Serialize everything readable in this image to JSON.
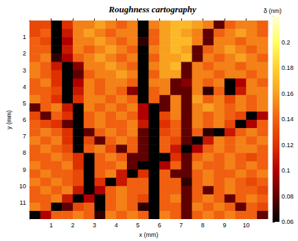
{
  "chart_data": {
    "type": "heatmap",
    "title": "Roughness cartography",
    "x_label": "x (mm)",
    "y_label": "y (mm)",
    "xlim": [
      0,
      11
    ],
    "ylim": [
      0,
      12
    ],
    "xticks": [
      1,
      2,
      3,
      4,
      5,
      6,
      7,
      8,
      9,
      10
    ],
    "yticks": [
      1,
      2,
      3,
      4,
      5,
      6,
      7,
      8,
      9,
      10,
      11
    ],
    "x_edges": [
      0,
      0.5,
      1,
      1.5,
      2,
      2.5,
      3,
      3.5,
      4,
      4.5,
      5,
      5.5,
      6,
      6.5,
      7,
      7.5,
      8,
      8.5,
      9,
      9.5,
      10,
      10.5,
      11
    ],
    "y_edges": [
      0,
      0.5,
      1,
      1.5,
      2,
      2.5,
      3,
      3.5,
      4,
      4.5,
      5,
      5.5,
      6,
      6.5,
      7,
      7.5,
      8,
      8.5,
      9,
      9.5,
      10,
      10.5,
      11,
      11.5,
      12
    ],
    "cells": [
      [
        0.13,
        0.13,
        0.06,
        0.12,
        0.15,
        0.15,
        0.16,
        0.15,
        0.14,
        0.15,
        0.06,
        0.15,
        0.16,
        0.17,
        0.17,
        0.16,
        0.15,
        0.08,
        0.14,
        0.15,
        0.15,
        0.14
      ],
      [
        0.13,
        0.14,
        0.06,
        0.11,
        0.15,
        0.16,
        0.15,
        0.14,
        0.15,
        0.15,
        0.06,
        0.14,
        0.16,
        0.17,
        0.16,
        0.15,
        0.08,
        0.14,
        0.15,
        0.16,
        0.15,
        0.14
      ],
      [
        0.14,
        0.13,
        0.06,
        0.1,
        0.15,
        0.15,
        0.16,
        0.15,
        0.14,
        0.15,
        0.07,
        0.14,
        0.16,
        0.17,
        0.17,
        0.15,
        0.08,
        0.15,
        0.15,
        0.14,
        0.15,
        0.15
      ],
      [
        0.14,
        0.14,
        0.06,
        0.11,
        0.15,
        0.14,
        0.15,
        0.16,
        0.15,
        0.14,
        0.06,
        0.15,
        0.16,
        0.17,
        0.16,
        0.08,
        0.14,
        0.15,
        0.16,
        0.15,
        0.14,
        0.15
      ],
      [
        0.14,
        0.15,
        0.07,
        0.1,
        0.14,
        0.15,
        0.16,
        0.15,
        0.14,
        0.15,
        0.06,
        0.14,
        0.16,
        0.16,
        0.17,
        0.08,
        0.15,
        0.14,
        0.15,
        0.16,
        0.15,
        0.14
      ],
      [
        0.15,
        0.14,
        0.11,
        0.06,
        0.09,
        0.15,
        0.15,
        0.16,
        0.15,
        0.14,
        0.06,
        0.15,
        0.16,
        0.17,
        0.08,
        0.15,
        0.14,
        0.15,
        0.15,
        0.14,
        0.15,
        0.15
      ],
      [
        0.15,
        0.14,
        0.12,
        0.06,
        0.08,
        0.14,
        0.15,
        0.15,
        0.16,
        0.15,
        0.06,
        0.14,
        0.16,
        0.16,
        0.08,
        0.15,
        0.15,
        0.14,
        0.15,
        0.15,
        0.14,
        0.15
      ],
      [
        0.14,
        0.15,
        0.12,
        0.06,
        0.1,
        0.15,
        0.14,
        0.15,
        0.15,
        0.14,
        0.06,
        0.15,
        0.15,
        0.08,
        0.09,
        0.15,
        0.14,
        0.15,
        0.06,
        0.1,
        0.15,
        0.14
      ],
      [
        0.14,
        0.14,
        0.13,
        0.06,
        0.11,
        0.15,
        0.14,
        0.15,
        0.14,
        0.09,
        0.06,
        0.14,
        0.15,
        0.08,
        0.08,
        0.15,
        0.07,
        0.14,
        0.06,
        0.11,
        0.15,
        0.15
      ],
      [
        0.15,
        0.14,
        0.12,
        0.06,
        0.12,
        0.15,
        0.15,
        0.14,
        0.15,
        0.14,
        0.06,
        0.14,
        0.08,
        0.15,
        0.08,
        0.16,
        0.14,
        0.15,
        0.13,
        0.15,
        0.14,
        0.15
      ],
      [
        0.08,
        0.14,
        0.15,
        0.11,
        0.06,
        0.15,
        0.14,
        0.15,
        0.14,
        0.15,
        0.1,
        0.06,
        0.08,
        0.15,
        0.08,
        0.15,
        0.16,
        0.15,
        0.14,
        0.15,
        0.14,
        0.15
      ],
      [
        0.13,
        0.08,
        0.14,
        0.12,
        0.06,
        0.14,
        0.15,
        0.14,
        0.15,
        0.14,
        0.1,
        0.06,
        0.13,
        0.15,
        0.08,
        0.15,
        0.14,
        0.15,
        0.14,
        0.13,
        0.06,
        0.1
      ],
      [
        0.14,
        0.13,
        0.12,
        0.08,
        0.06,
        0.14,
        0.15,
        0.14,
        0.14,
        0.15,
        0.11,
        0.06,
        0.12,
        0.14,
        0.08,
        0.15,
        0.14,
        0.15,
        0.13,
        0.06,
        0.1,
        0.14
      ],
      [
        0.14,
        0.15,
        0.14,
        0.12,
        0.06,
        0.08,
        0.14,
        0.15,
        0.14,
        0.15,
        0.08,
        0.06,
        0.13,
        0.14,
        0.08,
        0.14,
        0.07,
        0.06,
        0.11,
        0.14,
        0.15,
        0.14
      ],
      [
        0.15,
        0.14,
        0.15,
        0.12,
        0.06,
        0.13,
        0.08,
        0.14,
        0.15,
        0.14,
        0.08,
        0.06,
        0.14,
        0.13,
        0.08,
        0.06,
        0.11,
        0.15,
        0.14,
        0.15,
        0.14,
        0.15
      ],
      [
        0.14,
        0.15,
        0.14,
        0.13,
        0.06,
        0.14,
        0.15,
        0.13,
        0.08,
        0.14,
        0.08,
        0.06,
        0.14,
        0.11,
        0.06,
        0.1,
        0.14,
        0.15,
        0.14,
        0.15,
        0.15,
        0.14
      ],
      [
        0.14,
        0.14,
        0.15,
        0.14,
        0.12,
        0.06,
        0.14,
        0.15,
        0.14,
        0.08,
        0.08,
        0.06,
        0.06,
        0.12,
        0.08,
        0.14,
        0.15,
        0.14,
        0.15,
        0.14,
        0.13,
        0.14
      ],
      [
        0.15,
        0.14,
        0.14,
        0.15,
        0.12,
        0.06,
        0.14,
        0.14,
        0.15,
        0.08,
        0.06,
        0.06,
        0.1,
        0.14,
        0.08,
        0.15,
        0.14,
        0.14,
        0.15,
        0.14,
        0.15,
        0.14
      ],
      [
        0.14,
        0.15,
        0.14,
        0.14,
        0.13,
        0.06,
        0.14,
        0.15,
        0.11,
        0.06,
        0.12,
        0.06,
        0.14,
        0.08,
        0.08,
        0.14,
        0.15,
        0.14,
        0.14,
        0.15,
        0.14,
        0.15
      ],
      [
        0.15,
        0.14,
        0.15,
        0.14,
        0.13,
        0.06,
        0.12,
        0.06,
        0.11,
        0.14,
        0.14,
        0.06,
        0.14,
        0.14,
        0.07,
        0.14,
        0.15,
        0.14,
        0.15,
        0.14,
        0.13,
        0.14
      ],
      [
        0.14,
        0.15,
        0.14,
        0.15,
        0.11,
        0.06,
        0.1,
        0.14,
        0.15,
        0.14,
        0.14,
        0.06,
        0.14,
        0.14,
        0.08,
        0.14,
        0.08,
        0.14,
        0.15,
        0.14,
        0.14,
        0.13
      ],
      [
        0.14,
        0.14,
        0.15,
        0.11,
        0.06,
        0.1,
        0.06,
        0.14,
        0.15,
        0.14,
        0.13,
        0.06,
        0.14,
        0.15,
        0.08,
        0.14,
        0.15,
        0.14,
        0.08,
        0.14,
        0.15,
        0.14
      ],
      [
        0.15,
        0.14,
        0.06,
        0.08,
        0.13,
        0.14,
        0.06,
        0.14,
        0.15,
        0.14,
        0.07,
        0.06,
        0.14,
        0.14,
        0.08,
        0.15,
        0.14,
        0.15,
        0.14,
        0.08,
        0.14,
        0.13
      ],
      [
        0.06,
        0.1,
        0.14,
        0.14,
        0.15,
        0.14,
        0.07,
        0.15,
        0.14,
        0.15,
        0.14,
        0.06,
        0.15,
        0.14,
        0.08,
        0.14,
        0.15,
        0.14,
        0.15,
        0.14,
        0.14,
        0.08
      ]
    ],
    "colorbar": {
      "label": "δ (nm)",
      "range": [
        0.06,
        0.22
      ],
      "ticks": [
        0.06,
        0.08,
        0.1,
        0.12,
        0.14,
        0.16,
        0.18,
        0.2
      ]
    }
  }
}
